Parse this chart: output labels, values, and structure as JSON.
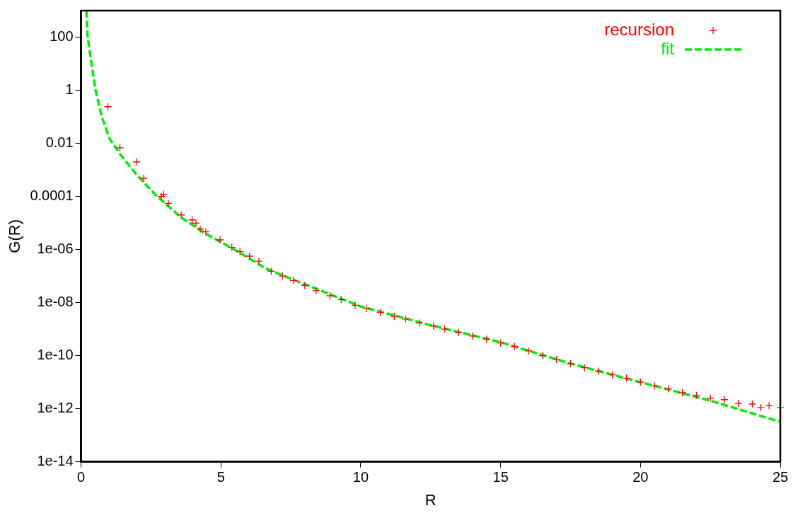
{
  "chart_data": {
    "type": "scatter",
    "xlabel": "R",
    "ylabel": "G(R)",
    "log": "y",
    "grid": false,
    "legend": "top right",
    "xlim": [
      0,
      25
    ],
    "xticks": [
      0,
      5,
      10,
      15,
      20,
      25
    ],
    "ylim": [
      1e-14,
      1000
    ],
    "yticks": [
      {
        "value": 1e-14,
        "label": "1e-14"
      },
      {
        "value": 1e-12,
        "label": "1e-12"
      },
      {
        "value": 1e-10,
        "label": "1e-10"
      },
      {
        "value": 1e-08,
        "label": "1e-08"
      },
      {
        "value": 1e-06,
        "label": "1e-06"
      },
      0.0001,
      0.01,
      1,
      100
    ],
    "series": [
      {
        "name": "recursion",
        "type": "scatter",
        "marker": "cross",
        "color": "#ff0000",
        "x": [
          0.96,
          1.39,
          1.99,
          2.24,
          2.87,
          2.95,
          3.12,
          3.58,
          3.97,
          4.11,
          4.26,
          4.46,
          4.97,
          5.39,
          5.68,
          6.02,
          6.36,
          6.8,
          7.2,
          7.6,
          8.0,
          8.4,
          8.9,
          9.3,
          9.8,
          10.2,
          10.7,
          11.2,
          11.6,
          12.1,
          12.6,
          13.0,
          13.5,
          14.0,
          14.5,
          15.0,
          15.5,
          16.0,
          16.5,
          17.0,
          17.5,
          18.0,
          18.5,
          19.0,
          19.5,
          20.0,
          20.5,
          21.0,
          21.5,
          22.0,
          22.5,
          23.0,
          23.5,
          24.0,
          24.3,
          24.6,
          25.0
        ],
        "values": [
          0.24,
          0.0068,
          0.002,
          0.00048,
          0.0001,
          0.00012,
          5.5e-05,
          2e-05,
          1.3e-05,
          9.8e-06,
          5.9e-06,
          4.6e-06,
          2.3e-06,
          1.2e-06,
          8.3e-07,
          5.6e-07,
          3.6e-07,
          1.5e-07,
          1e-07,
          6.8e-08,
          4.4e-08,
          2.8e-08,
          1.8e-08,
          1.3e-08,
          7.9e-09,
          6e-09,
          4.2e-09,
          3e-09,
          2.4e-09,
          1.7e-09,
          1.3e-09,
          1e-09,
          7.4e-10,
          5.5e-10,
          4.2e-10,
          3e-10,
          2.2e-10,
          1.5e-10,
          1e-10,
          7.2e-11,
          5e-11,
          3.5e-11,
          2.6e-11,
          1.9e-11,
          1.4e-11,
          1e-11,
          7.2e-12,
          5.6e-12,
          4e-12,
          3.2e-12,
          2.5e-12,
          2.2e-12,
          1.6e-12,
          1.5e-12,
          1.1e-12,
          1.3e-12,
          1.1e-12
        ]
      },
      {
        "name": "fit",
        "type": "line",
        "marker": "none",
        "line_style": "dashed",
        "color": "#00ee00",
        "x": [
          0.19,
          0.23,
          0.37,
          0.51,
          0.74,
          1.02,
          1.42,
          1.99,
          2.64,
          3.58,
          4.54,
          5.48,
          6.61,
          7.5,
          10,
          12.5,
          15,
          17.5,
          20,
          22.5,
          25
        ],
        "values": [
          1000,
          112,
          11,
          1.1,
          0.1,
          0.015,
          0.0036,
          0.00065,
          0.00012,
          1.6e-05,
          3.5e-06,
          1e-06,
          1.9e-07,
          7.9e-08,
          7.1e-09,
          1.4e-09,
          3.2e-10,
          5e-11,
          1e-11,
          2e-12,
          3.2e-13
        ]
      }
    ]
  }
}
